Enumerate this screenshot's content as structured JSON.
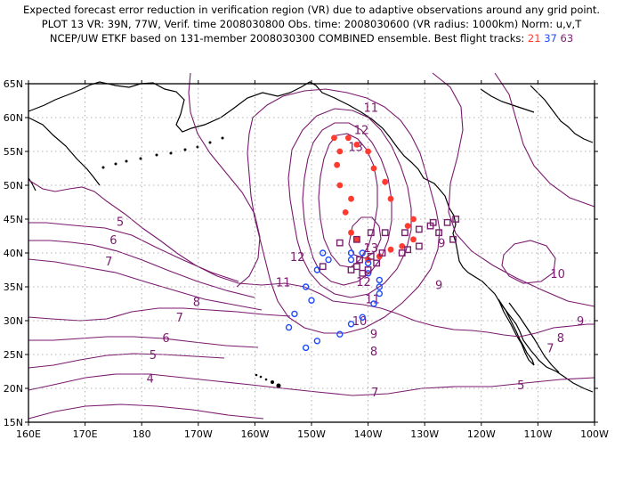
{
  "title_lines": [
    "Expected forecast error reduction in verification region (VR) due to adaptive observations around any grid point.",
    "PLOT 13 VR: 39N, 77W, Verif. time 2008030800 Obs. time: 2008030600 (VR radius: 1000km) Norm: u,v,T",
    "NCEP/UW ETKF based on 131-member 2008030300 COMBINED ensemble.  Best flight tracks: "
  ],
  "best_tracks": [
    {
      "label": "21",
      "color": "#ff3b30"
    },
    {
      "label": "37",
      "color": "#1f4bff"
    },
    {
      "label": "63",
      "color": "#7a1f6e"
    }
  ],
  "lat_labels": [
    "65N",
    "60N",
    "55N",
    "50N",
    "45N",
    "40N",
    "35N",
    "30N",
    "25N",
    "20N",
    "15N"
  ],
  "lon_labels": [
    "160E",
    "170E",
    "180",
    "170W",
    "160W",
    "150W",
    "140W",
    "130W",
    "120W",
    "110W",
    "100W"
  ],
  "contour_labels": [
    {
      "v": "11",
      "lat": 61.5,
      "lon": -139.5
    },
    {
      "v": "12",
      "lat": 58.2,
      "lon": -141.2
    },
    {
      "v": "13",
      "lat": 55.7,
      "lon": -142.2
    },
    {
      "v": "12",
      "lat": 39.5,
      "lon": -152.5
    },
    {
      "v": "11",
      "lat": 35.7,
      "lon": -155.0
    },
    {
      "v": "13",
      "lat": 40.8,
      "lon": -139.5
    },
    {
      "v": "12",
      "lat": 35.8,
      "lon": -140.8
    },
    {
      "v": "11",
      "lat": 33.2,
      "lon": -139.2
    },
    {
      "v": "10",
      "lat": 30.0,
      "lon": -141.5
    },
    {
      "v": "9",
      "lat": 28.1,
      "lon": -139.0
    },
    {
      "v": "8",
      "lat": 25.5,
      "lon": -139.0
    },
    {
      "v": "7",
      "lat": 19.5,
      "lon": -138.8
    },
    {
      "v": "8",
      "lat": 32.8,
      "lon": -170.3
    },
    {
      "v": "7",
      "lat": 30.5,
      "lon": -173.3
    },
    {
      "v": "6",
      "lat": 27.5,
      "lon": -175.7
    },
    {
      "v": "5",
      "lat": 25.0,
      "lon": -178.0
    },
    {
      "v": "4",
      "lat": 21.5,
      "lon": -178.5
    },
    {
      "v": "5",
      "lat": 44.7,
      "lon": -183.8
    },
    {
      "v": "6",
      "lat": 42.0,
      "lon": -185.0
    },
    {
      "v": "7",
      "lat": 38.8,
      "lon": -185.8
    },
    {
      "v": "9",
      "lat": 41.5,
      "lon": -127.0
    },
    {
      "v": "9",
      "lat": 35.3,
      "lon": -127.5
    },
    {
      "v": "10",
      "lat": 37.0,
      "lon": -106.5
    },
    {
      "v": "9",
      "lat": 30.0,
      "lon": -102.5
    },
    {
      "v": "8",
      "lat": 27.5,
      "lon": -106.0
    },
    {
      "v": "7",
      "lat": 26.0,
      "lon": -107.8
    },
    {
      "v": "5",
      "lat": 20.5,
      "lon": -113.0
    }
  ],
  "track_21_red": [
    [
      57,
      -146
    ],
    [
      57,
      -143.5
    ],
    [
      56,
      -142
    ],
    [
      55,
      -145
    ],
    [
      55,
      -140
    ],
    [
      53,
      -145.5
    ],
    [
      52.5,
      -139
    ],
    [
      50.5,
      -137
    ],
    [
      50,
      -145
    ],
    [
      48,
      -143
    ],
    [
      48,
      -136
    ],
    [
      46,
      -144
    ],
    [
      45,
      -132
    ],
    [
      44,
      -133
    ],
    [
      43,
      -143
    ],
    [
      42,
      -142
    ],
    [
      42,
      -132
    ],
    [
      41,
      -134
    ],
    [
      40.5,
      -136
    ],
    [
      39.5,
      -138
    ],
    [
      39,
      -140
    ]
  ],
  "track_37_blue": [
    [
      40,
      -143
    ],
    [
      40,
      -141
    ],
    [
      40,
      -148
    ],
    [
      39,
      -147
    ],
    [
      39,
      -143
    ],
    [
      38.5,
      -140
    ],
    [
      37.5,
      -149
    ],
    [
      37,
      -140
    ],
    [
      36,
      -138
    ],
    [
      35,
      -151
    ],
    [
      35,
      -138
    ],
    [
      34,
      -138
    ],
    [
      33,
      -150
    ],
    [
      32.5,
      -139
    ],
    [
      31,
      -153
    ],
    [
      30.5,
      -141
    ],
    [
      29,
      -154
    ],
    [
      29.5,
      -143
    ],
    [
      28,
      -145
    ],
    [
      27,
      -149
    ],
    [
      26,
      -151
    ]
  ],
  "track_63_purple": [
    [
      45,
      -124.5
    ],
    [
      44.5,
      -126
    ],
    [
      44,
      -129
    ],
    [
      43.5,
      -131
    ],
    [
      43,
      -133.5
    ],
    [
      43,
      -137
    ],
    [
      43,
      -139.5
    ],
    [
      42,
      -142
    ],
    [
      41.5,
      -145
    ],
    [
      41,
      -131
    ],
    [
      40.5,
      -133
    ],
    [
      40,
      -134
    ],
    [
      40,
      -137.5
    ],
    [
      39.5,
      -139.5
    ],
    [
      39,
      -141.5
    ],
    [
      38.5,
      -138.5
    ],
    [
      38,
      -142
    ],
    [
      37.5,
      -140
    ],
    [
      37.5,
      -143
    ],
    [
      37,
      -141
    ],
    [
      38,
      -148
    ],
    [
      42,
      -125
    ],
    [
      43,
      -127.5
    ],
    [
      44.5,
      -128.5
    ]
  ]
}
